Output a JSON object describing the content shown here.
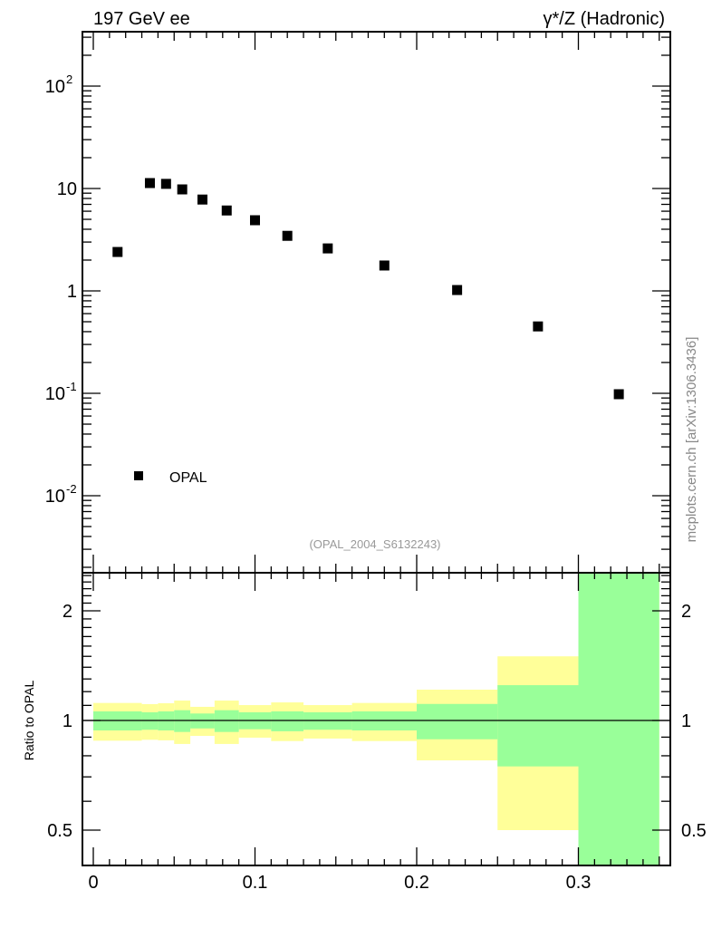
{
  "chart_data": [
    {
      "type": "scatter",
      "title_left": "197 GeV ee",
      "title_right": "γ*/Z (Hadronic)",
      "yscale": "log",
      "ylim": [
        0.0018,
        340
      ],
      "xlim": [
        -0.0067,
        0.357
      ],
      "ytick_labels": [
        {
          "value": 100,
          "base": "10",
          "exp": "2"
        },
        {
          "value": 10,
          "base": "10",
          "exp": ""
        },
        {
          "value": 1,
          "base": "1",
          "exp": ""
        },
        {
          "value": 0.1,
          "base": "10",
          "exp": "-1"
        },
        {
          "value": 0.01,
          "base": "10",
          "exp": "-2"
        }
      ],
      "series": [
        {
          "name": "OPAL",
          "color": "#000000",
          "x": [
            0.015,
            0.035,
            0.045,
            0.055,
            0.0675,
            0.0825,
            0.1,
            0.12,
            0.145,
            0.18,
            0.225,
            0.275,
            0.325
          ],
          "y": [
            2.4,
            11.3,
            11.1,
            9.8,
            7.8,
            6.1,
            4.9,
            3.45,
            2.6,
            1.77,
            1.02,
            0.45,
            0.098
          ]
        }
      ],
      "legend": {
        "position": "bottom-left",
        "entries": [
          "OPAL"
        ]
      },
      "watermark": "(OPAL_2004_S6132243)",
      "side_label": "mcplots.cern.ch [arXiv:1306.3436]"
    },
    {
      "type": "area",
      "ylabel": "Ratio to OPAL",
      "yscale": "log",
      "ylim": [
        0.4,
        2.54
      ],
      "xlim": [
        -0.0067,
        0.357
      ],
      "xtick_labels": [
        "0",
        "0.1",
        "0.2",
        "0.3"
      ],
      "xticks": [
        0,
        0.1,
        0.2,
        0.3
      ],
      "ytick_labels": [
        "2",
        "1",
        "0.5"
      ],
      "yticks": [
        2,
        1,
        0.5
      ],
      "bin_edges": [
        0,
        0.03,
        0.04,
        0.05,
        0.06,
        0.075,
        0.09,
        0.11,
        0.13,
        0.16,
        0.2,
        0.25,
        0.3,
        0.35
      ],
      "stat_band": {
        "color": "#99ff99",
        "up": [
          1.059,
          1.053,
          1.059,
          1.067,
          1.045,
          1.067,
          1.053,
          1.059,
          1.053,
          1.059,
          1.11,
          1.25,
          3.0
        ],
        "down": [
          0.939,
          0.943,
          0.939,
          0.93,
          0.951,
          0.93,
          0.946,
          0.934,
          0.943,
          0.939,
          0.888,
          0.748,
          0.3
        ]
      },
      "total_band": {
        "color": "#ffff99",
        "up": [
          1.117,
          1.109,
          1.115,
          1.134,
          1.09,
          1.134,
          1.102,
          1.121,
          1.102,
          1.117,
          1.215,
          1.5,
          3.0
        ],
        "down": [
          0.88,
          0.885,
          0.882,
          0.862,
          0.907,
          0.862,
          0.897,
          0.878,
          0.892,
          0.878,
          0.777,
          0.5,
          0.3
        ]
      },
      "reference_line": 1
    }
  ]
}
